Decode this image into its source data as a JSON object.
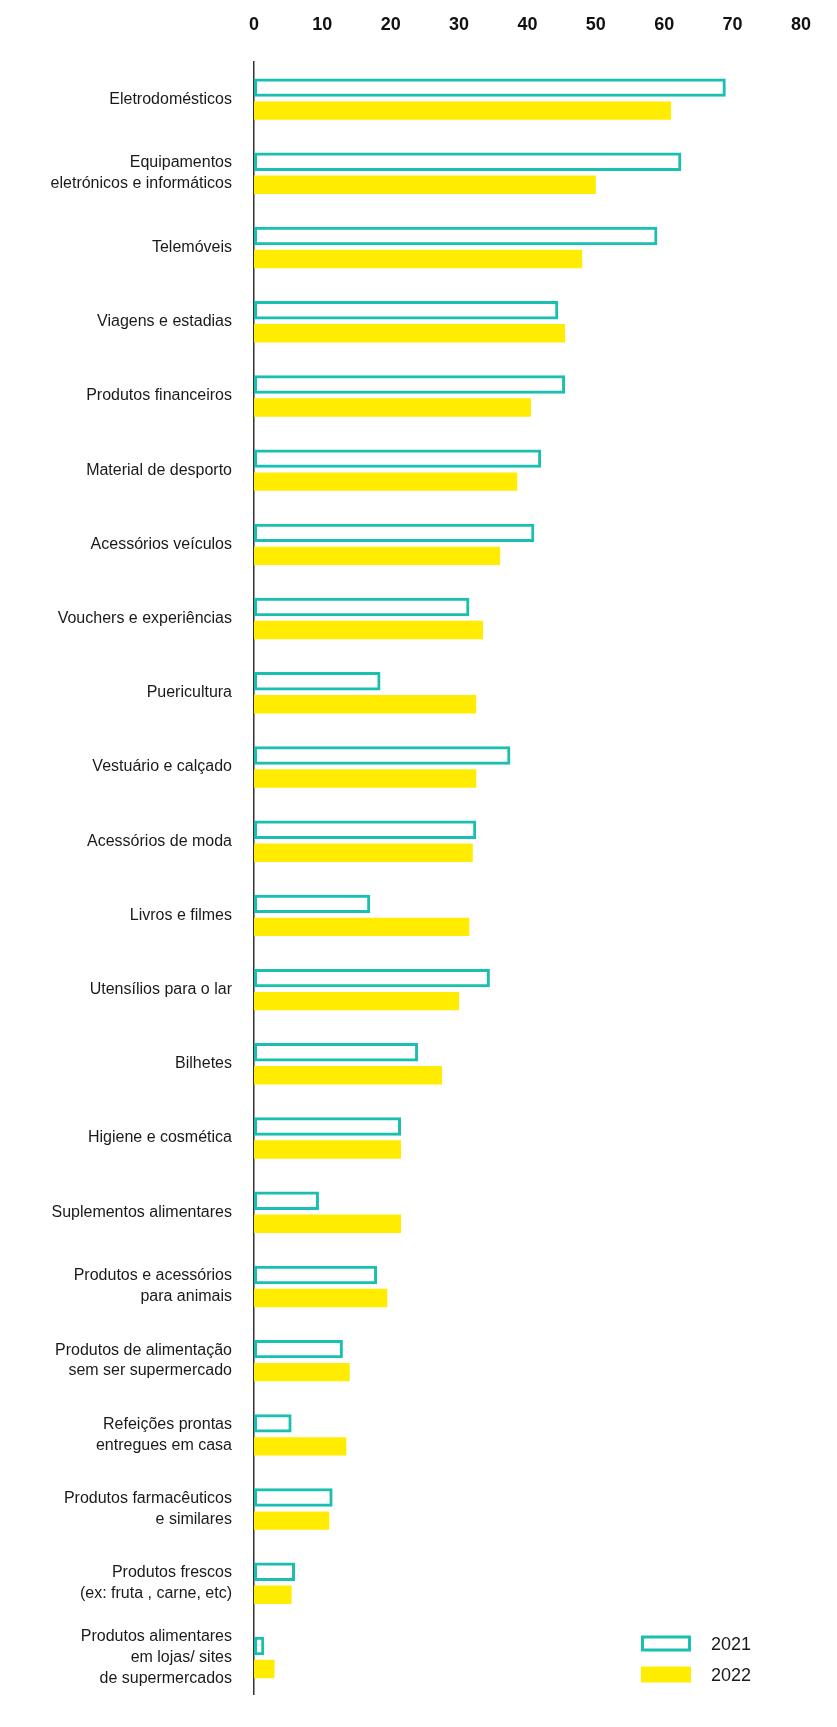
{
  "chart_data": {
    "type": "bar",
    "orientation": "horizontal",
    "categories": [
      "Eletrodomésticos",
      "Equipamentos\neletrónicos e informáticos",
      "Telemóveis",
      "Viagens e estadias",
      "Produtos financeiros",
      "Material de desporto",
      "Acessórios veículos",
      "Vouchers e experiências",
      "Puericultura",
      "Vestuário e calçado",
      "Acessórios de moda",
      "Livros e filmes",
      "Utensílios para o lar",
      "Bilhetes",
      "Higiene e cosmética",
      "Suplementos alimentares",
      "Produtos e acessórios\npara animais",
      "Produtos de alimentação\nsem ser supermercado",
      "Refeições prontas\nentregues em casa",
      "Produtos farmacêuticos\ne similares",
      "Produtos frescos\n(ex: fruta , carne, etc)",
      "Produtos alimentares\nem lojas/ sites\nde supermercados"
    ],
    "series": [
      {
        "name": "2021",
        "color": "#1bbfb0",
        "values": [
          69,
          62.5,
          59,
          44.5,
          45.5,
          42,
          41,
          31.5,
          18.5,
          37.5,
          32.5,
          17,
          34.5,
          24,
          21.5,
          9.5,
          18,
          13,
          5.5,
          11.5,
          6,
          1.5
        ]
      },
      {
        "name": "2022",
        "color": "#ffec00",
        "values": [
          61,
          50,
          48,
          45.5,
          40.5,
          38.5,
          36,
          33.5,
          32.5,
          32.5,
          32,
          31.5,
          30,
          27.5,
          21.5,
          21.5,
          19.5,
          14,
          13.5,
          11,
          5.5,
          3
        ]
      }
    ],
    "xlim": [
      0,
      80
    ],
    "xticks": [
      0,
      10,
      20,
      30,
      40,
      50,
      60,
      70,
      80
    ],
    "grid": false,
    "legend": "bottom right"
  }
}
